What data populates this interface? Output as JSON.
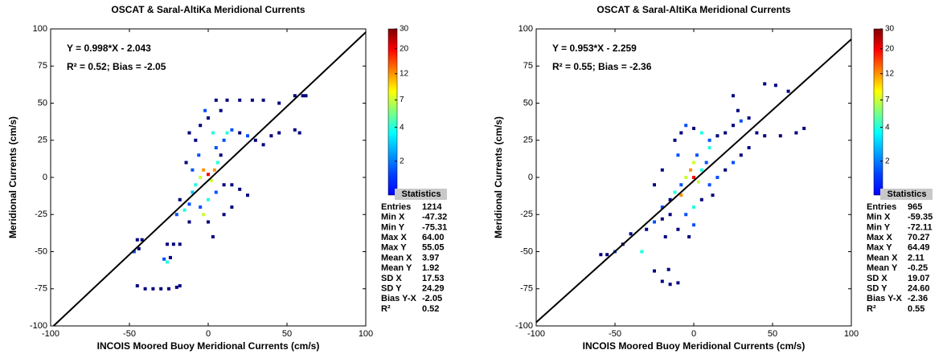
{
  "chart_data": [
    {
      "type": "scatter",
      "title": "OSCAT & Saral-AltiKa Meridional Currents",
      "x_label": "INCOIS Moored Buoy Meridional Currents (cm/s)",
      "y_label": "Meridional Currents (cm/s)",
      "xlim": [
        -100,
        100
      ],
      "ylim": [
        -100,
        100
      ],
      "xticks": [
        -100,
        -50,
        0,
        50,
        100
      ],
      "yticks": [
        -100,
        -75,
        -50,
        -25,
        0,
        25,
        50,
        75,
        100
      ],
      "equation": "Y = 0.998*X - 2.043",
      "fit_summary": "R² = 0.52; Bias = -2.05",
      "fit_line": {
        "slope": 0.998,
        "intercept": -2.043,
        "color": "#000000"
      },
      "colorbar": {
        "lim": [
          1,
          30
        ],
        "ticks": [
          1,
          2,
          4,
          7,
          12,
          20,
          30
        ],
        "scale": "log",
        "colormap": "jet"
      },
      "x": [
        -45,
        -42,
        -47,
        -44,
        -28,
        -26,
        -24,
        -22,
        -18,
        -26,
        -45,
        -40,
        -35,
        -30,
        -25,
        -20,
        -18,
        -20,
        -15,
        -12,
        -18,
        -10,
        -8,
        -5,
        -3,
        0,
        2,
        4,
        6,
        -6,
        -8,
        -5,
        -2,
        0,
        3,
        5,
        8,
        10,
        12,
        15,
        20,
        25,
        30,
        35,
        40,
        45,
        55,
        58,
        5,
        12,
        20,
        28,
        35,
        45,
        55,
        60,
        62,
        -12,
        -5,
        0,
        5,
        10,
        15,
        20,
        25,
        15,
        10,
        0,
        -10,
        -14,
        -12,
        8,
        -3,
        3
      ],
      "y": [
        -42,
        -42,
        -50,
        -48,
        -55,
        -57,
        -54,
        -45,
        -45,
        -45,
        -73,
        -75,
        -75,
        -75,
        -75,
        -74,
        -73,
        -25,
        -22,
        -18,
        -15,
        -10,
        -5,
        0,
        5,
        2,
        -2,
        5,
        10,
        15,
        25,
        35,
        45,
        40,
        30,
        20,
        15,
        25,
        30,
        32,
        30,
        28,
        25,
        22,
        28,
        30,
        32,
        30,
        52,
        52,
        52,
        52,
        52,
        50,
        55,
        55,
        55,
        -30,
        -20,
        -15,
        -10,
        -5,
        -5,
        -8,
        -12,
        -20,
        -25,
        -30,
        5,
        10,
        30,
        45,
        -25,
        -40
      ],
      "counts": [
        1,
        1,
        2,
        1,
        2,
        4,
        1,
        1,
        1,
        1,
        1,
        1,
        1,
        1,
        1,
        1,
        1,
        2,
        4,
        2,
        1,
        3,
        4,
        7,
        12,
        20,
        7,
        12,
        4,
        2,
        1,
        1,
        2,
        1,
        4,
        2,
        1,
        2,
        4,
        2,
        1,
        2,
        1,
        1,
        1,
        1,
        1,
        1,
        1,
        1,
        1,
        1,
        1,
        1,
        1,
        1,
        1,
        1,
        2,
        4,
        2,
        1,
        1,
        1,
        1,
        1,
        1,
        1,
        2,
        1,
        1,
        1,
        7,
        1
      ],
      "statistics": {
        "title": "Statistics",
        "rows": [
          [
            "Entries",
            "1214"
          ],
          [
            "Min X",
            "-47.32"
          ],
          [
            "Min Y",
            "-75.31"
          ],
          [
            "Max X",
            "64.00"
          ],
          [
            "Max Y",
            "55.05"
          ],
          [
            "Mean X",
            "3.97"
          ],
          [
            "Mean Y",
            "1.92"
          ],
          [
            "SD X",
            "17.53"
          ],
          [
            "SD Y",
            "24.29"
          ],
          [
            "Bias Y-X",
            "-2.05"
          ],
          [
            "R²",
            "0.52"
          ]
        ]
      }
    },
    {
      "type": "scatter",
      "title": "OSCAT & Saral-AltiKa Meridional Currents",
      "x_label": "INCOIS Moored Buoy Meridional Currents (cm/s)",
      "y_label": "Meridional Currents (cm/s)",
      "xlim": [
        -100,
        100
      ],
      "ylim": [
        -100,
        100
      ],
      "xticks": [
        -100,
        -50,
        0,
        50,
        100
      ],
      "yticks": [
        -100,
        -75,
        -50,
        -25,
        0,
        25,
        50,
        75,
        100
      ],
      "equation": "Y = 0.953*X - 2.259",
      "fit_summary": "R² = 0.55; Bias = -2.36",
      "fit_line": {
        "slope": 0.953,
        "intercept": -2.259,
        "color": "#000000"
      },
      "colorbar": {
        "lim": [
          1,
          30
        ],
        "ticks": [
          1,
          2,
          4,
          7,
          12,
          20,
          30
        ],
        "scale": "log",
        "colormap": "jet"
      },
      "x": [
        -59,
        -55,
        -50,
        -45,
        -40,
        -33,
        -30,
        -25,
        -20,
        -20,
        -15,
        -10,
        -16,
        -25,
        -20,
        -15,
        -12,
        -8,
        -5,
        -2,
        0,
        3,
        5,
        8,
        -10,
        -12,
        -8,
        -5,
        0,
        5,
        10,
        15,
        20,
        25,
        30,
        35,
        40,
        45,
        55,
        65,
        70,
        25,
        28,
        45,
        52,
        60,
        35,
        30,
        25,
        20,
        15,
        10,
        5,
        0,
        -5,
        0,
        -3,
        -10,
        -15,
        10,
        -20,
        -25,
        -18,
        0,
        -8,
        2,
        12
      ],
      "y": [
        -52,
        -52,
        -50,
        -45,
        -38,
        -50,
        -35,
        -30,
        -28,
        -70,
        -72,
        -71,
        -62,
        -63,
        -20,
        -15,
        -10,
        -5,
        0,
        5,
        0,
        -3,
        5,
        10,
        15,
        25,
        30,
        35,
        33,
        30,
        25,
        28,
        30,
        35,
        38,
        40,
        30,
        28,
        28,
        30,
        33,
        55,
        45,
        63,
        62,
        58,
        20,
        15,
        10,
        5,
        0,
        -5,
        -15,
        -20,
        -25,
        -32,
        -40,
        -35,
        -25,
        20,
        5,
        -5,
        -40,
        10,
        -12,
        15,
        -12
      ],
      "counts": [
        1,
        1,
        2,
        1,
        1,
        4,
        1,
        2,
        1,
        1,
        1,
        1,
        1,
        1,
        2,
        1,
        4,
        2,
        7,
        12,
        20,
        7,
        4,
        2,
        2,
        1,
        1,
        2,
        1,
        4,
        2,
        1,
        1,
        1,
        2,
        1,
        1,
        1,
        1,
        1,
        1,
        1,
        1,
        1,
        1,
        1,
        1,
        1,
        2,
        1,
        2,
        2,
        1,
        4,
        2,
        2,
        1,
        1,
        1,
        4,
        1,
        1,
        1,
        7,
        12,
        2,
        1
      ],
      "statistics": {
        "title": "Statistics",
        "rows": [
          [
            "Entries",
            "965"
          ],
          [
            "Min X",
            "-59.35"
          ],
          [
            "Min Y",
            "-72.11"
          ],
          [
            "Max X",
            "70.27"
          ],
          [
            "Max Y",
            "64.49"
          ],
          [
            "Mean X",
            "2.11"
          ],
          [
            "Mean Y",
            "-0.25"
          ],
          [
            "SD X",
            "19.07"
          ],
          [
            "SD Y",
            "24.60"
          ],
          [
            "Bias Y-X",
            "-2.36"
          ],
          [
            "R²",
            "0.55"
          ]
        ]
      }
    }
  ]
}
